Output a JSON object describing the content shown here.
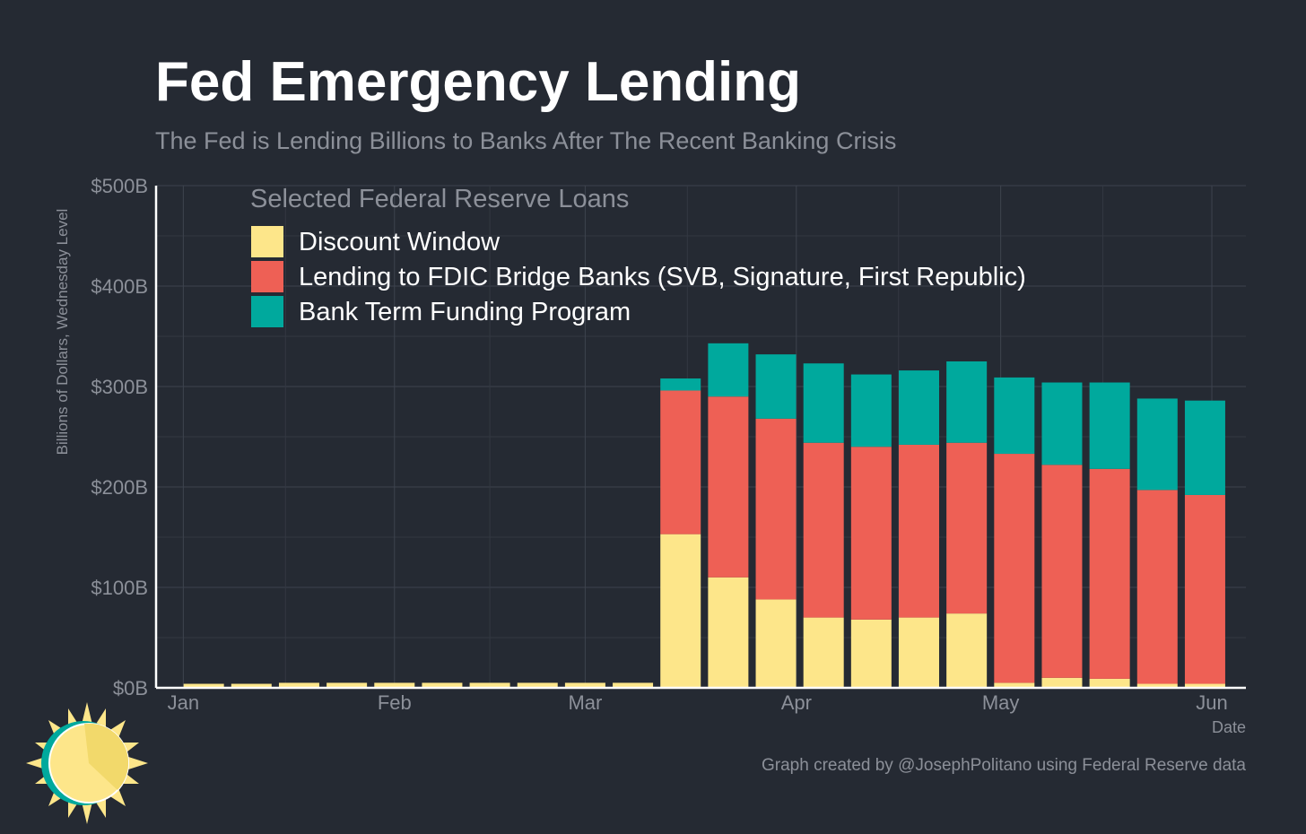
{
  "chart_data": {
    "type": "bar",
    "stacked": true,
    "title": "Fed Emergency Lending",
    "subtitle": "The Fed is Lending Billions to Banks After The Recent Banking Crisis",
    "xlabel": "Date",
    "ylabel": "Billions of Dollars, Wednesday Level",
    "ylim": [
      0,
      500
    ],
    "y_ticks": [
      "$0B",
      "$100B",
      "$200B",
      "$300B",
      "$400B",
      "$500B"
    ],
    "x_ticks": [
      "Jan",
      "Feb",
      "Mar",
      "Apr",
      "May",
      "Jun"
    ],
    "grid": true,
    "legend_title": "Selected Federal Reserve Loans",
    "legend_position": "top-left",
    "x": [
      "2023-01-04",
      "2023-01-11",
      "2023-01-18",
      "2023-01-25",
      "2023-02-01",
      "2023-02-08",
      "2023-02-15",
      "2023-02-22",
      "2023-03-01",
      "2023-03-08",
      "2023-03-15",
      "2023-03-22",
      "2023-03-29",
      "2023-04-05",
      "2023-04-12",
      "2023-04-19",
      "2023-04-26",
      "2023-05-03",
      "2023-05-10",
      "2023-05-17",
      "2023-05-24",
      "2023-05-31"
    ],
    "series": [
      {
        "name": "Discount Window",
        "color": "#fde68a",
        "values": [
          4,
          4,
          5,
          5,
          5,
          5,
          5,
          5,
          5,
          5,
          153,
          110,
          88,
          70,
          68,
          70,
          74,
          5,
          10,
          9,
          4,
          4
        ]
      },
      {
        "name": "Lending to FDIC Bridge Banks (SVB, Signature, First Republic)",
        "color": "#ee6055",
        "values": [
          0,
          0,
          0,
          0,
          0,
          0,
          0,
          0,
          0,
          0,
          143,
          180,
          180,
          174,
          172,
          172,
          170,
          228,
          212,
          209,
          193,
          188
        ]
      },
      {
        "name": "Bank Term Funding Program",
        "color": "#00a99d",
        "values": [
          0,
          0,
          0,
          0,
          0,
          0,
          0,
          0,
          0,
          0,
          12,
          53,
          64,
          79,
          72,
          74,
          81,
          76,
          82,
          86,
          91,
          94
        ]
      }
    ]
  },
  "footer": {
    "credit": "Graph created by @JosephPolitano using Federal Reserve data"
  }
}
